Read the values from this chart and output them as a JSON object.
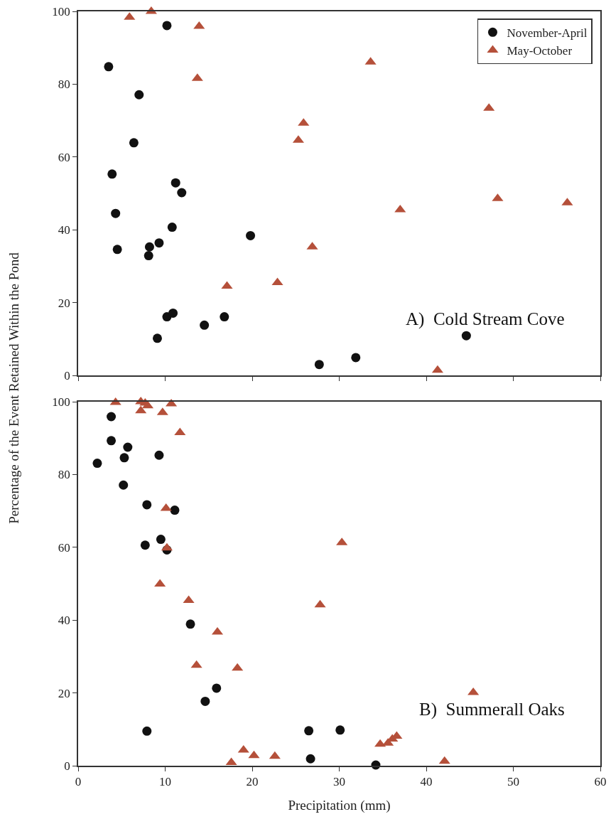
{
  "chart_data": [
    {
      "type": "scatter",
      "ylabel": "Percentage of the Event Retained Within the Pond",
      "annotations": [
        "A)  Cold Stream Cove"
      ],
      "xlim": [
        0,
        60
      ],
      "xticks": [
        0,
        10,
        20,
        30,
        40,
        50,
        60
      ],
      "ylim": [
        0,
        100
      ],
      "yticks": [
        0,
        20,
        40,
        60,
        80,
        100
      ],
      "tick_labels": "y",
      "legend": "top right",
      "series": [
        {
          "name": "November-April",
          "color": "#111111",
          "marker": "circle",
          "x": [
            10.2,
            3.5,
            7.0,
            6.4,
            3.9,
            11.2,
            11.9,
            4.3,
            10.8,
            19.8,
            4.5,
            9.3,
            8.2,
            8.1,
            10.2,
            10.9,
            14.5,
            16.8,
            9.1,
            27.7,
            31.9,
            44.6
          ],
          "values": [
            96.1,
            84.8,
            77.1,
            63.9,
            55.3,
            52.9,
            50.2,
            44.5,
            40.7,
            38.4,
            34.6,
            36.4,
            35.3,
            32.9,
            16.1,
            17.1,
            13.8,
            16.1,
            10.2,
            3.0,
            4.9,
            10.9
          ]
        },
        {
          "name": "May-October",
          "color": "#b5503a",
          "marker": "triangle",
          "x": [
            5.9,
            8.4,
            13.9,
            13.7,
            25.9,
            25.3,
            26.9,
            17.1,
            22.9,
            33.6,
            47.2,
            37.0,
            48.2,
            56.2,
            41.3
          ],
          "values": [
            98.4,
            100,
            95.9,
            81.6,
            69.3,
            64.6,
            35.3,
            24.5,
            25.5,
            86.1,
            73.4,
            45.5,
            48.6,
            47.4,
            1.4
          ]
        }
      ]
    },
    {
      "type": "scatter",
      "xlabel": "Precipitation (mm)",
      "annotations": [
        "B)  Summerall Oaks"
      ],
      "xlim": [
        0,
        60
      ],
      "xticks": [
        0,
        10,
        20,
        30,
        40,
        50,
        60
      ],
      "ylim": [
        0,
        100
      ],
      "yticks": [
        0,
        20,
        40,
        60,
        80,
        100
      ],
      "series": [
        {
          "color": "#111111",
          "marker": "circle",
          "x": [
            3.8,
            3.8,
            5.7,
            5.3,
            2.2,
            9.3,
            5.2,
            7.9,
            11.1,
            9.5,
            7.7,
            10.2,
            12.9,
            15.9,
            14.6,
            7.9,
            26.5,
            30.1,
            26.7,
            34.2
          ],
          "values": [
            95.9,
            89.3,
            87.5,
            84.6,
            83.1,
            85.3,
            77.1,
            71.7,
            70.2,
            62.2,
            60.6,
            59.3,
            38.9,
            21.3,
            17.7,
            9.5,
            9.6,
            9.8,
            1.9,
            0.2
          ]
        },
        {
          "color": "#b5503a",
          "marker": "triangle",
          "x": [
            4.3,
            7.2,
            7.7,
            8.0,
            7.2,
            10.7,
            9.7,
            11.7,
            10.1,
            10.2,
            9.4,
            12.7,
            16.0,
            13.6,
            18.3,
            19.0,
            20.2,
            22.6,
            17.6,
            30.3,
            27.8,
            45.4,
            34.7,
            35.6,
            36.1,
            36.6,
            42.1
          ],
          "values": [
            99.8,
            100,
            99.6,
            98.9,
            97.5,
            99.4,
            97.0,
            91.5,
            70.7,
            59.8,
            49.9,
            45.4,
            36.7,
            27.6,
            26.8,
            4.3,
            2.8,
            2.6,
            0.9,
            61.3,
            44.2,
            20.1,
            5.9,
            6.2,
            7.3,
            8.1,
            1.2
          ]
        }
      ]
    }
  ]
}
